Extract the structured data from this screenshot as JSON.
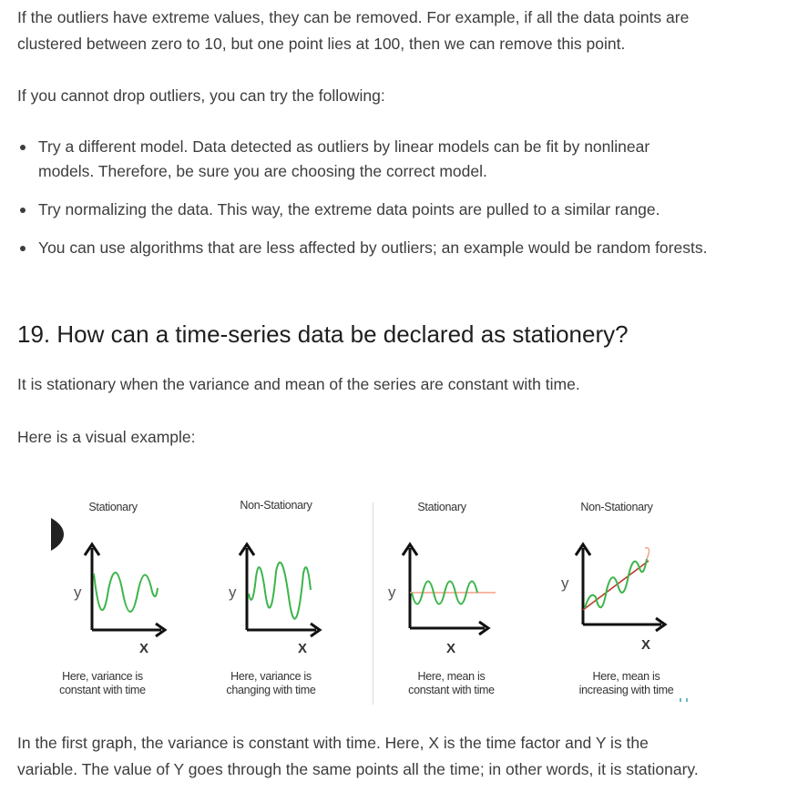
{
  "intro": {
    "para1": "If the outliers have extreme values, they can be removed. For example, if all the data points are clustered between zero to 10, but one point lies at 100, then we can remove this point.",
    "para2": "If you cannot drop outliers, you can try the following:"
  },
  "bullets": [
    "Try a different model. Data detected as outliers by linear models can be fit by nonlinear models. Therefore, be sure you are choosing the correct model.",
    "Try normalizing the data. This way, the extreme data points are pulled to a similar range.",
    "You can use algorithms that are less affected by outliers; an example would be random forests."
  ],
  "section": {
    "heading": "19. How can a time-series data be declared as stationery?",
    "para1": "It is stationary when the variance and mean of the series are constant with time.",
    "para2": "Here is a visual example:"
  },
  "figure": {
    "panels": [
      {
        "title": "Stationary",
        "caption_line1": "Here, variance is",
        "caption_line2": "constant with time",
        "y_label": "y",
        "x_label": "X"
      },
      {
        "title": "Non-Stationary",
        "caption_line1": "Here, variance is",
        "caption_line2": "changing with time",
        "y_label": "y",
        "x_label": "X"
      },
      {
        "title": "Stationary",
        "caption_line1": "Here, mean is",
        "caption_line2": "constant with time",
        "y_label": "y",
        "x_label": "X"
      },
      {
        "title": "Non-Stationary",
        "caption_line1": "Here, mean is",
        "caption_line2": "increasing with time",
        "y_label": "y",
        "x_label": "X"
      }
    ],
    "colors": {
      "wave": "#3bb54a",
      "mean_line": "#f3a08a",
      "trend_line": "#c0392b",
      "axis": "#111111"
    }
  },
  "closing": {
    "text": "In the first graph, the variance is constant with time. Here, X is the time factor and Y is the variable. The value of Y goes through the same points all the time; in other words, it is stationary."
  }
}
